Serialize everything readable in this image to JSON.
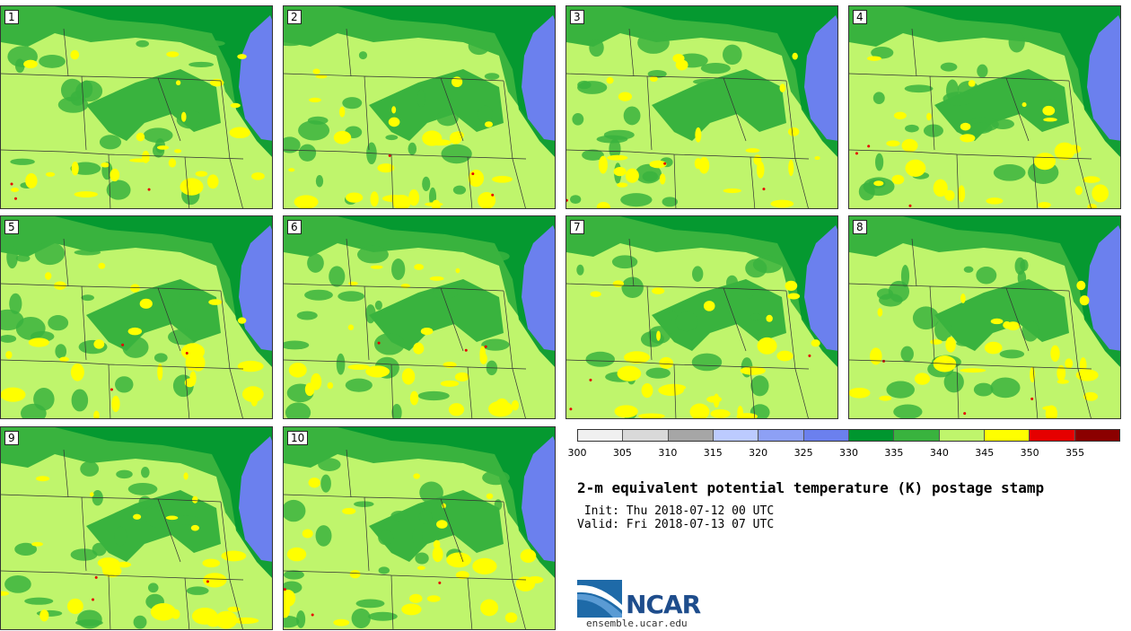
{
  "title": "2-m equivalent potential temperature (K) postage stamp",
  "init": " Init: Thu 2018-07-12 00 UTC",
  "valid": "Valid: Fri 2018-07-13 07 UTC",
  "website": "ensemble.ucar.edu",
  "logo_text": "NCAR",
  "members": [
    "1",
    "2",
    "3",
    "4",
    "5",
    "6",
    "7",
    "8",
    "9",
    "10"
  ],
  "colorbar": {
    "colors": [
      "#f0f0f0",
      "#d9d9d9",
      "#a6a6a6",
      "#bccbff",
      "#8da0f5",
      "#6b80ee",
      "#00962f",
      "#39b33e",
      "#bff56c",
      "#ffff00",
      "#e50000",
      "#8b0000"
    ],
    "ticks": [
      "300",
      "305",
      "310",
      "315",
      "320",
      "325",
      "330",
      "335",
      "340",
      "345",
      "350",
      "355"
    ]
  },
  "palette": {
    "base": "#bff56c",
    "mid": "#39b33e",
    "dark": "#00962f",
    "lake": "#6b80ee",
    "hot": "#ffff00",
    "extreme": "#e50000"
  }
}
